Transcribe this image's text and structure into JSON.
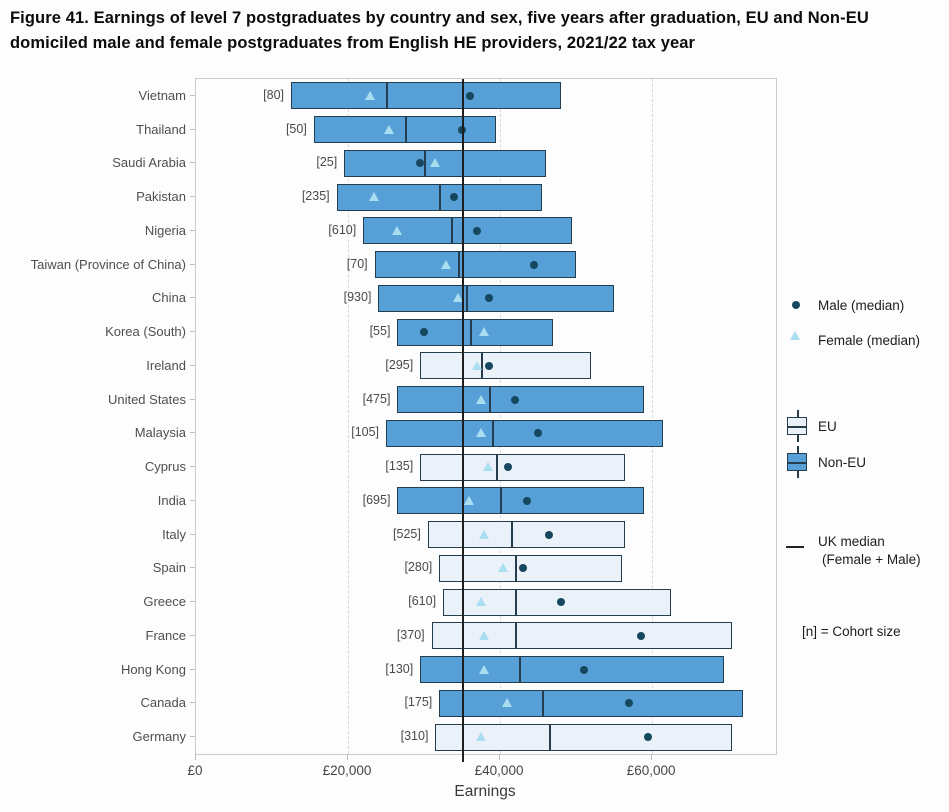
{
  "title": "Figure 41. Earnings of level 7 postgraduates by country and sex, five years after graduation, EU and Non-EU domiciled male and female postgraduates from English HE providers, 2021/22 tax year",
  "chart_data": {
    "type": "boxplot",
    "orientation": "horizontal",
    "xlabel": "Earnings",
    "xlim": [
      0,
      76300
    ],
    "x_ticks": [
      {
        "value": 0,
        "label": "£0"
      },
      {
        "value": 20000,
        "label": "£20,000"
      },
      {
        "value": 40000,
        "label": "£40,000"
      },
      {
        "value": 60000,
        "label": "£60,000"
      }
    ],
    "grid": "vertical dashed gridlines at £20,000 / £40,000 / £60,000",
    "uk_median": 35100,
    "rows": [
      {
        "country": "Vietnam",
        "cohort": "[80]",
        "group": "Non-EU",
        "q1": 12500,
        "median": 25000,
        "q3": 48000,
        "male_median": 36000,
        "female_median": 23000
      },
      {
        "country": "Thailand",
        "cohort": "[50]",
        "group": "Non-EU",
        "q1": 15500,
        "median": 27500,
        "q3": 39500,
        "male_median": 35000,
        "female_median": 25500
      },
      {
        "country": "Saudi Arabia",
        "cohort": "[25]",
        "group": "Non-EU",
        "q1": 19500,
        "median": 30000,
        "q3": 46000,
        "male_median": 29500,
        "female_median": 31500
      },
      {
        "country": "Pakistan",
        "cohort": "[235]",
        "group": "Non-EU",
        "q1": 18500,
        "median": 32000,
        "q3": 45500,
        "male_median": 34000,
        "female_median": 23500
      },
      {
        "country": "Nigeria",
        "cohort": "[610]",
        "group": "Non-EU",
        "q1": 22000,
        "median": 33500,
        "q3": 49500,
        "male_median": 37000,
        "female_median": 26500
      },
      {
        "country": "Taiwan (Province of China)",
        "cohort": "[70]",
        "group": "Non-EU",
        "q1": 23500,
        "median": 34500,
        "q3": 50000,
        "male_median": 44500,
        "female_median": 33000
      },
      {
        "country": "China",
        "cohort": "[930]",
        "group": "Non-EU",
        "q1": 24000,
        "median": 35500,
        "q3": 55000,
        "male_median": 38500,
        "female_median": 34500
      },
      {
        "country": "Korea (South)",
        "cohort": "[55]",
        "group": "Non-EU",
        "q1": 26500,
        "median": 36000,
        "q3": 47000,
        "male_median": 30000,
        "female_median": 38000
      },
      {
        "country": "Ireland",
        "cohort": "[295]",
        "group": "EU",
        "q1": 29500,
        "median": 37500,
        "q3": 52000,
        "male_median": 38500,
        "female_median": 37000
      },
      {
        "country": "United States",
        "cohort": "[475]",
        "group": "Non-EU",
        "q1": 26500,
        "median": 38500,
        "q3": 59000,
        "male_median": 42000,
        "female_median": 37500
      },
      {
        "country": "Malaysia",
        "cohort": "[105]",
        "group": "Non-EU",
        "q1": 25000,
        "median": 39000,
        "q3": 61500,
        "male_median": 45000,
        "female_median": 37500
      },
      {
        "country": "Cyprus",
        "cohort": "[135]",
        "group": "EU",
        "q1": 29500,
        "median": 39500,
        "q3": 56500,
        "male_median": 41000,
        "female_median": 38500
      },
      {
        "country": "India",
        "cohort": "[695]",
        "group": "Non-EU",
        "q1": 26500,
        "median": 40000,
        "q3": 59000,
        "male_median": 43500,
        "female_median": 36000
      },
      {
        "country": "Italy",
        "cohort": "[525]",
        "group": "EU",
        "q1": 30500,
        "median": 41500,
        "q3": 56500,
        "male_median": 46500,
        "female_median": 38000
      },
      {
        "country": "Spain",
        "cohort": "[280]",
        "group": "EU",
        "q1": 32000,
        "median": 42000,
        "q3": 56000,
        "male_median": 43000,
        "female_median": 40500
      },
      {
        "country": "Greece",
        "cohort": "[610]",
        "group": "EU",
        "q1": 32500,
        "median": 42000,
        "q3": 62500,
        "male_median": 48000,
        "female_median": 37500
      },
      {
        "country": "France",
        "cohort": "[370]",
        "group": "EU",
        "q1": 31000,
        "median": 42000,
        "q3": 70500,
        "male_median": 58500,
        "female_median": 38000
      },
      {
        "country": "Hong Kong",
        "cohort": "[130]",
        "group": "Non-EU",
        "q1": 29500,
        "median": 42500,
        "q3": 69500,
        "male_median": 51000,
        "female_median": 38000
      },
      {
        "country": "Canada",
        "cohort": "[175]",
        "group": "Non-EU",
        "q1": 32000,
        "median": 45500,
        "q3": 72000,
        "male_median": 57000,
        "female_median": 41000
      },
      {
        "country": "Germany",
        "cohort": "[310]",
        "group": "EU",
        "q1": 31500,
        "median": 46500,
        "q3": 70500,
        "male_median": 59500,
        "female_median": 37500
      }
    ]
  },
  "legend": {
    "male_label": "Male (median)",
    "female_label": "Female (median)",
    "eu_label": "EU",
    "non_eu_label": "Non-EU",
    "uk_median_line1": "UK median",
    "uk_median_line2": "(Female + Male)",
    "cohort_note": "[n] = Cohort size"
  },
  "colors": {
    "eu_fill": "#eaf1f8",
    "non_eu_fill": "#57a0d7",
    "box_border": "#263d4d",
    "male_dot": "#15475f",
    "female_triangle": "#a9def1",
    "uk_median_line": "#1f1f1f"
  }
}
